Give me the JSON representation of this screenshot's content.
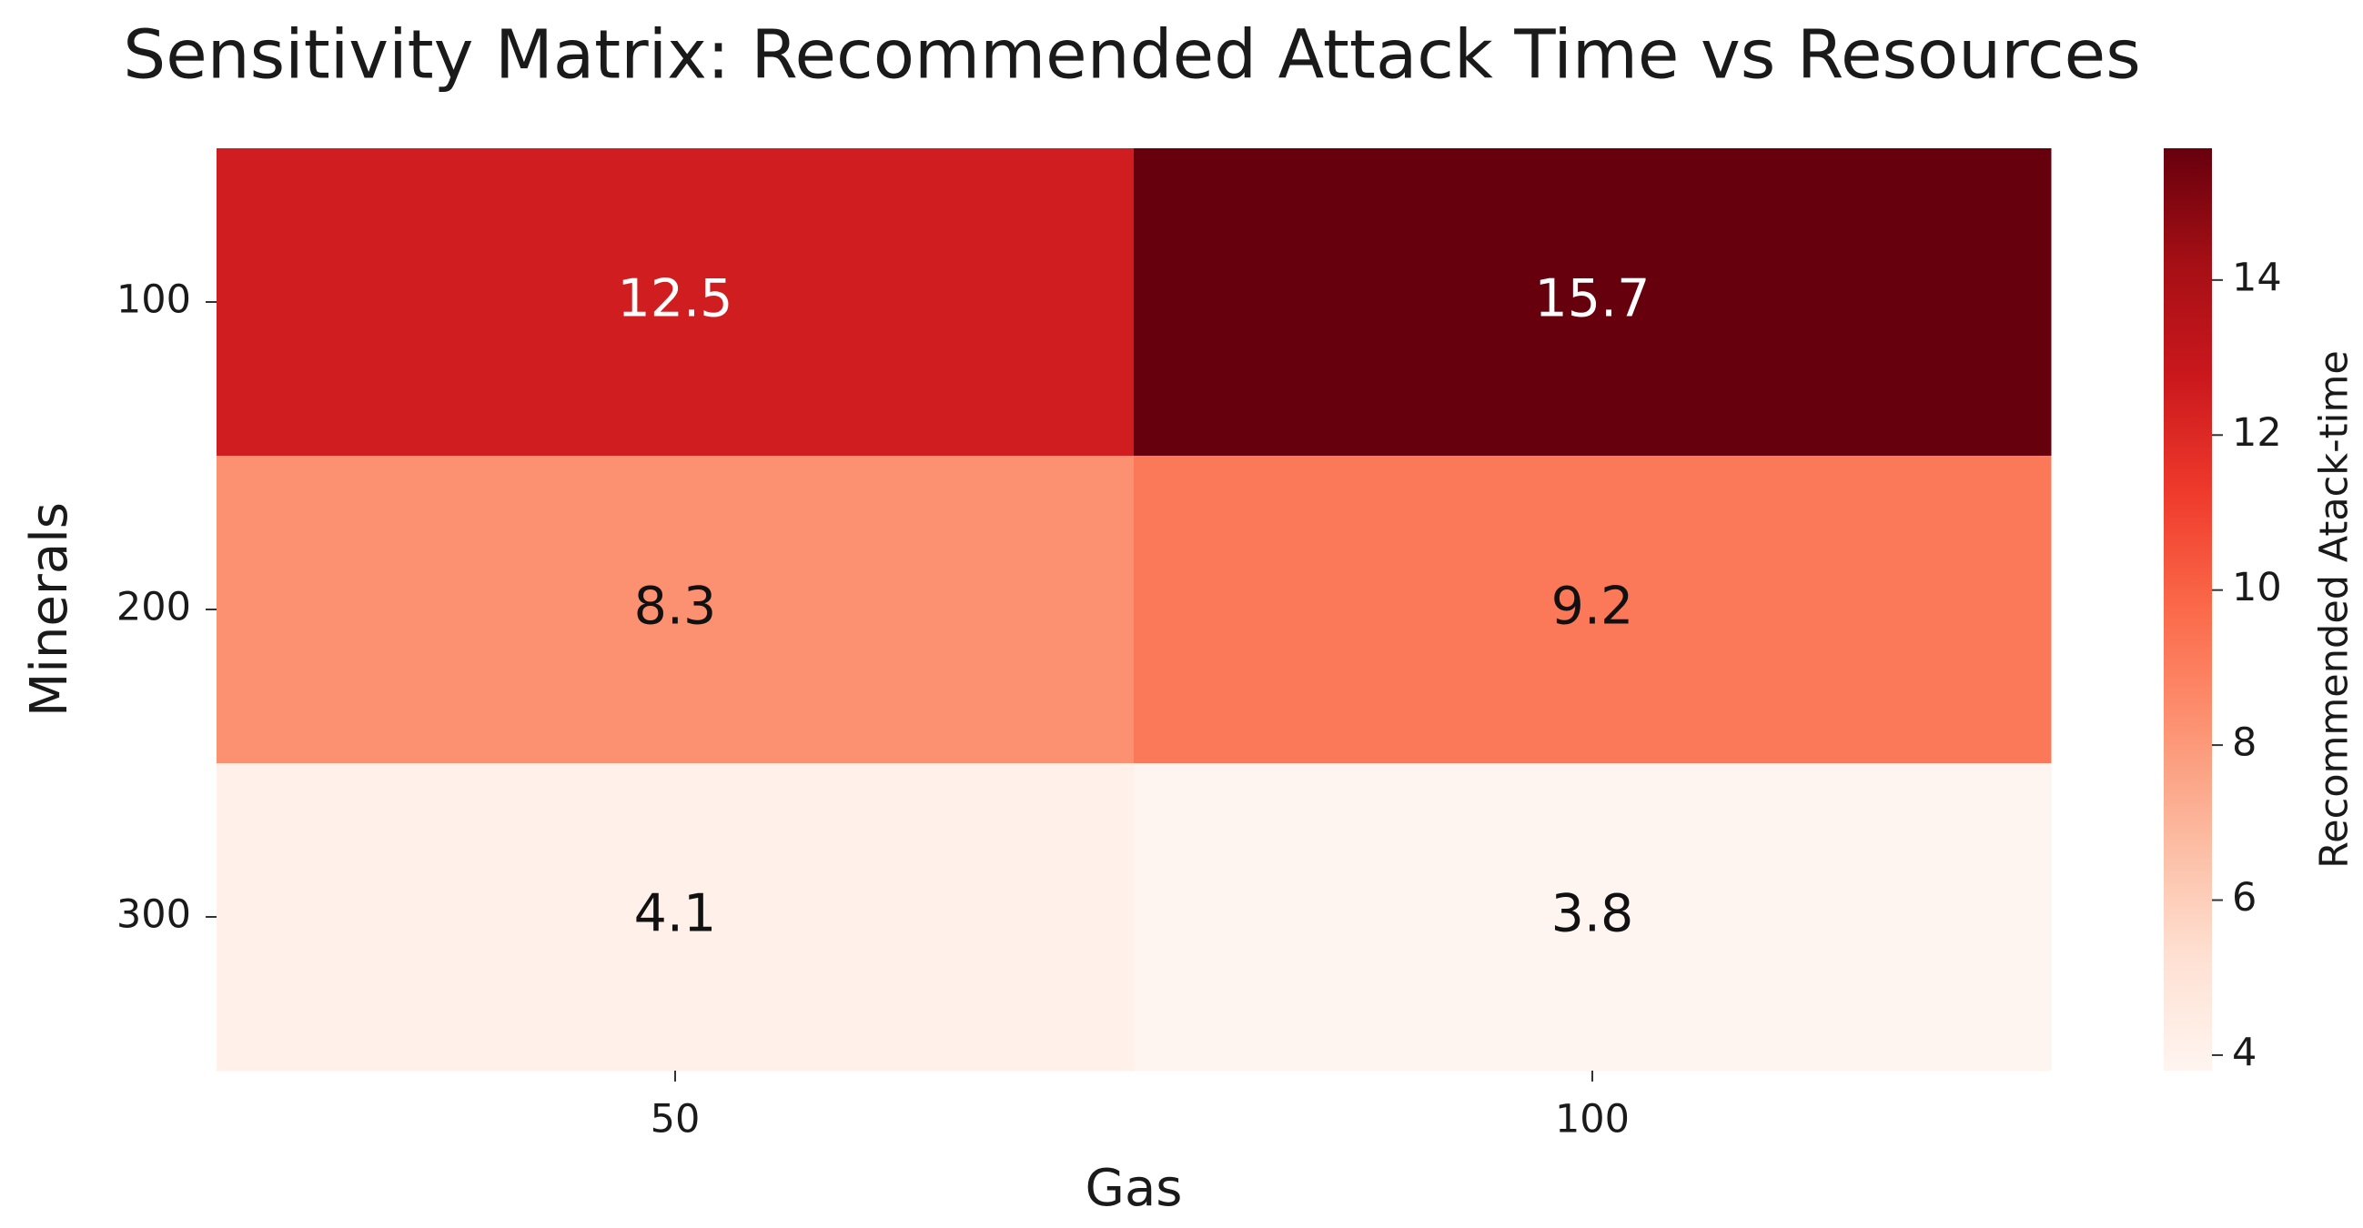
{
  "chart_data": {
    "type": "heatmap",
    "title": "Sensitivity Matrix: Recommended Attack Time vs Resources",
    "x_label": "Gas",
    "y_label": "Minerals",
    "x_categories": [
      "50",
      "100"
    ],
    "y_categories": [
      "100",
      "200",
      "300"
    ],
    "values": [
      [
        12.5,
        15.7
      ],
      [
        8.3,
        9.2
      ],
      [
        4.1,
        3.8
      ]
    ],
    "colormap": "Reds",
    "colorbar_label": "Recommended Atack-time",
    "clim": [
      3.8,
      15.7
    ],
    "cticks": [
      4,
      6,
      8,
      10,
      12,
      14
    ]
  }
}
